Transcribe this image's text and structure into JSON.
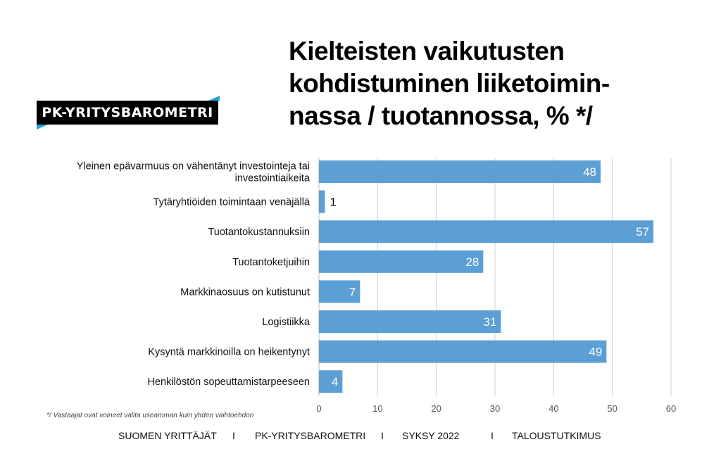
{
  "logo": "PK-YRITYSBAROMETRI",
  "title": "Kielteisten vaikutusten kohdistuminen liiketoimin-nassa / tuotannossa, % */",
  "title_lines": [
    "Kielteisten vaikutusten",
    "kohdistuminen liiketoimin-",
    "nassa / tuotannossa, % */"
  ],
  "footnote": "*/ Vastaajat ovat voineet valita useamman kuin yhden vaihtoehdon",
  "footer": [
    "SUOMEN YRITTÄJÄT",
    "I",
    "PK-YRITYSBAROMETRI",
    "I",
    "SYKSY 2022",
    "I",
    "TALOUSTUTKIMUS"
  ],
  "colors": {
    "bar": "#5b9fd5",
    "grid": "#d0d0d0"
  },
  "chart_data": {
    "type": "bar",
    "orientation": "horizontal",
    "categories": [
      [
        "Yleinen epävarmuus on vähentänyt investointeja tai",
        "investointiaikeita"
      ],
      [
        "Tytäryhtiöiden toimintaan venäjällä"
      ],
      [
        "Tuotantokustannuksiin"
      ],
      [
        "Tuotantoketjuihin"
      ],
      [
        "Markkinaosuus on kutistunut"
      ],
      [
        "Logistiikka"
      ],
      [
        "Kysyntä markkinoilla on heikentynyt"
      ],
      [
        "Henkilöstön sopeuttamistarpeeseen"
      ]
    ],
    "values": [
      48,
      1,
      57,
      28,
      7,
      31,
      49,
      4
    ],
    "xlim": [
      0,
      60
    ],
    "xticks": [
      0,
      10,
      20,
      30,
      40,
      50,
      60
    ],
    "grid": true
  }
}
